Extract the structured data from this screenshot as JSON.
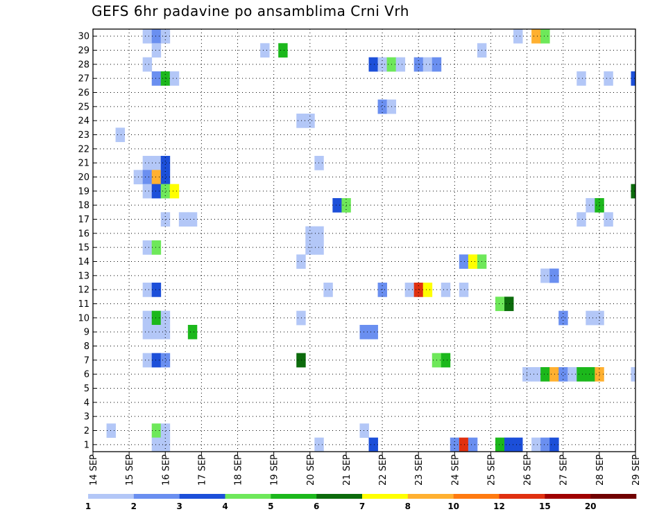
{
  "chart_data": {
    "type": "heatmap",
    "title": "GEFS 6hr padavine po ansamblima Crni Vrh",
    "xlabel": "",
    "ylabel": "",
    "x_tick_labels": [
      "14 SEP",
      "15 SEP",
      "16 SEP",
      "17 SEP",
      "18 SEP",
      "19 SEP",
      "20 SEP",
      "21 SEP",
      "22 SEP",
      "23 SEP",
      "24 SEP",
      "25 SEP",
      "26 SEP",
      "27 SEP",
      "28 SEP",
      "29 SEP"
    ],
    "y_tick_labels": [
      "1",
      "2",
      "3",
      "4",
      "5",
      "6",
      "7",
      "8",
      "9",
      "10",
      "11",
      "12",
      "13",
      "14",
      "15",
      "16",
      "17",
      "18",
      "19",
      "20",
      "21",
      "22",
      "23",
      "24",
      "25",
      "26",
      "27",
      "28",
      "29",
      "30"
    ],
    "xlim": [
      0,
      60
    ],
    "ylim": [
      0.5,
      30.5
    ],
    "grid": true,
    "legend": {
      "placement": "bottom",
      "colors": [
        "#b3c7f7",
        "#6a8ff0",
        "#1c4fd9",
        "#6ee85a",
        "#1cb81c",
        "#0c6b0c",
        "#ffff00",
        "#ffb030",
        "#ff7a10",
        "#e03010",
        "#a00000",
        "#700000"
      ],
      "labels": [
        "1",
        "2",
        "3",
        "4",
        "5",
        "6",
        "7",
        "8",
        "10",
        "12",
        "15",
        "20"
      ]
    },
    "cells": [
      {
        "s": 30,
        "t": 6,
        "v": 1
      },
      {
        "s": 30,
        "t": 7,
        "v": 2
      },
      {
        "s": 30,
        "t": 8,
        "v": 1
      },
      {
        "s": 30,
        "t": 47,
        "v": 1
      },
      {
        "s": 30,
        "t": 49,
        "v": 8
      },
      {
        "s": 30,
        "t": 50,
        "v": 4
      },
      {
        "s": 29,
        "t": 7,
        "v": 1
      },
      {
        "s": 29,
        "t": 19,
        "v": 1
      },
      {
        "s": 29,
        "t": 21,
        "v": 5
      },
      {
        "s": 29,
        "t": 43,
        "v": 1
      },
      {
        "s": 28,
        "t": 6,
        "v": 1
      },
      {
        "s": 28,
        "t": 31,
        "v": 3
      },
      {
        "s": 28,
        "t": 32,
        "v": 1
      },
      {
        "s": 28,
        "t": 33,
        "v": 4
      },
      {
        "s": 28,
        "t": 34,
        "v": 1
      },
      {
        "s": 28,
        "t": 36,
        "v": 2
      },
      {
        "s": 28,
        "t": 37,
        "v": 1
      },
      {
        "s": 28,
        "t": 38,
        "v": 2
      },
      {
        "s": 27,
        "t": 7,
        "v": 2
      },
      {
        "s": 27,
        "t": 8,
        "v": 5
      },
      {
        "s": 27,
        "t": 9,
        "v": 1
      },
      {
        "s": 27,
        "t": 54,
        "v": 1
      },
      {
        "s": 27,
        "t": 57,
        "v": 1
      },
      {
        "s": 27,
        "t": 60,
        "v": 3
      },
      {
        "s": 25,
        "t": 32,
        "v": 2
      },
      {
        "s": 25,
        "t": 33,
        "v": 1
      },
      {
        "s": 24,
        "t": 23,
        "v": 1
      },
      {
        "s": 24,
        "t": 24,
        "v": 1
      },
      {
        "s": 23,
        "t": 3,
        "v": 1
      },
      {
        "s": 21,
        "t": 6,
        "v": 1
      },
      {
        "s": 21,
        "t": 7,
        "v": 1
      },
      {
        "s": 21,
        "t": 8,
        "v": 3
      },
      {
        "s": 21,
        "t": 25,
        "v": 1
      },
      {
        "s": 20,
        "t": 5,
        "v": 1
      },
      {
        "s": 20,
        "t": 6,
        "v": 2
      },
      {
        "s": 20,
        "t": 7,
        "v": 8
      },
      {
        "s": 20,
        "t": 8,
        "v": 3
      },
      {
        "s": 19,
        "t": 6,
        "v": 1
      },
      {
        "s": 19,
        "t": 7,
        "v": 3
      },
      {
        "s": 19,
        "t": 8,
        "v": 4
      },
      {
        "s": 19,
        "t": 9,
        "v": 7
      },
      {
        "s": 19,
        "t": 60,
        "v": 6
      },
      {
        "s": 18,
        "t": 27,
        "v": 3
      },
      {
        "s": 18,
        "t": 28,
        "v": 4
      },
      {
        "s": 18,
        "t": 55,
        "v": 1
      },
      {
        "s": 18,
        "t": 56,
        "v": 5
      },
      {
        "s": 17,
        "t": 8,
        "v": 1
      },
      {
        "s": 17,
        "t": 10,
        "v": 1
      },
      {
        "s": 17,
        "t": 11,
        "v": 1
      },
      {
        "s": 17,
        "t": 54,
        "v": 1
      },
      {
        "s": 17,
        "t": 57,
        "v": 1
      },
      {
        "s": 16,
        "t": 24,
        "v": 1
      },
      {
        "s": 16,
        "t": 25,
        "v": 1
      },
      {
        "s": 15,
        "t": 6,
        "v": 1
      },
      {
        "s": 15,
        "t": 7,
        "v": 4
      },
      {
        "s": 15,
        "t": 24,
        "v": 1
      },
      {
        "s": 15,
        "t": 25,
        "v": 1
      },
      {
        "s": 14,
        "t": 23,
        "v": 1
      },
      {
        "s": 14,
        "t": 41,
        "v": 2
      },
      {
        "s": 14,
        "t": 42,
        "v": 7
      },
      {
        "s": 14,
        "t": 43,
        "v": 4
      },
      {
        "s": 13,
        "t": 50,
        "v": 1
      },
      {
        "s": 13,
        "t": 51,
        "v": 2
      },
      {
        "s": 12,
        "t": 6,
        "v": 1
      },
      {
        "s": 12,
        "t": 7,
        "v": 3
      },
      {
        "s": 12,
        "t": 26,
        "v": 1
      },
      {
        "s": 12,
        "t": 32,
        "v": 2
      },
      {
        "s": 12,
        "t": 35,
        "v": 1
      },
      {
        "s": 12,
        "t": 36,
        "v": 12
      },
      {
        "s": 12,
        "t": 37,
        "v": 7
      },
      {
        "s": 12,
        "t": 39,
        "v": 1
      },
      {
        "s": 12,
        "t": 41,
        "v": 1
      },
      {
        "s": 11,
        "t": 45,
        "v": 4
      },
      {
        "s": 11,
        "t": 46,
        "v": 6
      },
      {
        "s": 10,
        "t": 6,
        "v": 1
      },
      {
        "s": 10,
        "t": 7,
        "v": 5
      },
      {
        "s": 10,
        "t": 8,
        "v": 1
      },
      {
        "s": 10,
        "t": 23,
        "v": 1
      },
      {
        "s": 10,
        "t": 52,
        "v": 2
      },
      {
        "s": 10,
        "t": 55,
        "v": 1
      },
      {
        "s": 10,
        "t": 56,
        "v": 1
      },
      {
        "s": 9,
        "t": 6,
        "v": 1
      },
      {
        "s": 9,
        "t": 7,
        "v": 1
      },
      {
        "s": 9,
        "t": 8,
        "v": 1
      },
      {
        "s": 9,
        "t": 11,
        "v": 5
      },
      {
        "s": 9,
        "t": 30,
        "v": 2
      },
      {
        "s": 9,
        "t": 31,
        "v": 2
      },
      {
        "s": 7,
        "t": 6,
        "v": 1
      },
      {
        "s": 7,
        "t": 7,
        "v": 3
      },
      {
        "s": 7,
        "t": 8,
        "v": 2
      },
      {
        "s": 7,
        "t": 23,
        "v": 6
      },
      {
        "s": 7,
        "t": 38,
        "v": 4
      },
      {
        "s": 7,
        "t": 39,
        "v": 5
      },
      {
        "s": 6,
        "t": 48,
        "v": 1
      },
      {
        "s": 6,
        "t": 49,
        "v": 1
      },
      {
        "s": 6,
        "t": 50,
        "v": 5
      },
      {
        "s": 6,
        "t": 51,
        "v": 8
      },
      {
        "s": 6,
        "t": 52,
        "v": 2
      },
      {
        "s": 6,
        "t": 53,
        "v": 1
      },
      {
        "s": 6,
        "t": 54,
        "v": 5
      },
      {
        "s": 6,
        "t": 55,
        "v": 5
      },
      {
        "s": 6,
        "t": 56,
        "v": 8
      },
      {
        "s": 6,
        "t": 60,
        "v": 1
      },
      {
        "s": 2,
        "t": 2,
        "v": 1
      },
      {
        "s": 2,
        "t": 7,
        "v": 4
      },
      {
        "s": 2,
        "t": 8,
        "v": 1
      },
      {
        "s": 2,
        "t": 30,
        "v": 1
      },
      {
        "s": 1,
        "t": 7,
        "v": 1
      },
      {
        "s": 1,
        "t": 8,
        "v": 1
      },
      {
        "s": 1,
        "t": 25,
        "v": 1
      },
      {
        "s": 1,
        "t": 31,
        "v": 3
      },
      {
        "s": 1,
        "t": 40,
        "v": 2
      },
      {
        "s": 1,
        "t": 41,
        "v": 12
      },
      {
        "s": 1,
        "t": 42,
        "v": 2
      },
      {
        "s": 1,
        "t": 45,
        "v": 5
      },
      {
        "s": 1,
        "t": 46,
        "v": 3
      },
      {
        "s": 1,
        "t": 47,
        "v": 3
      },
      {
        "s": 1,
        "t": 49,
        "v": 1
      },
      {
        "s": 1,
        "t": 50,
        "v": 2
      },
      {
        "s": 1,
        "t": 51,
        "v": 3
      },
      {
        "s": 0,
        "t": 19,
        "v": 1
      }
    ]
  }
}
